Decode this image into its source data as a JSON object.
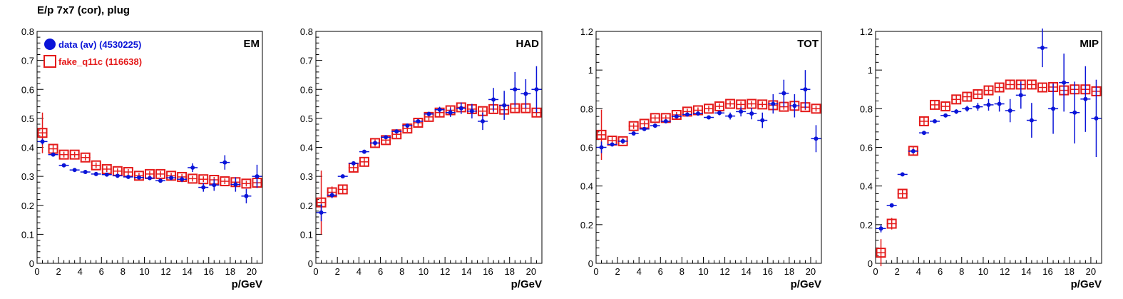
{
  "title": "E/p 7x7 (cor), plug",
  "colors": {
    "data": "#0a14d8",
    "mc": "#e41a1a",
    "axis": "#000000"
  },
  "legend": [
    {
      "label": "data (av) (4530225)",
      "marker": "filled-circle",
      "color": "#0a14d8"
    },
    {
      "label": "fake_q11c (116638)",
      "marker": "open-square",
      "color": "#e41a1a"
    }
  ],
  "chart_data": [
    {
      "type": "scatter",
      "panel_label": "EM",
      "xlabel": "p/GeV",
      "xlim": [
        0,
        21
      ],
      "ylim": [
        0,
        0.8
      ],
      "xticks": [
        0,
        2,
        4,
        6,
        8,
        10,
        12,
        14,
        16,
        18,
        20
      ],
      "yticks": [
        0,
        0.1,
        0.2,
        0.3,
        0.4,
        0.5,
        0.6,
        0.7,
        0.8
      ],
      "x": [
        0.5,
        1.5,
        2.5,
        3.5,
        4.5,
        5.5,
        6.5,
        7.5,
        8.5,
        9.5,
        10.5,
        11.5,
        12.5,
        13.5,
        14.5,
        15.5,
        16.5,
        17.5,
        18.5,
        19.5,
        20.5
      ],
      "series": [
        {
          "name": "data (av) (4530225)",
          "values": [
            0.42,
            0.375,
            0.338,
            0.322,
            0.315,
            0.308,
            0.306,
            0.302,
            0.298,
            0.296,
            0.294,
            0.285,
            0.295,
            0.29,
            0.33,
            0.262,
            0.27,
            0.348,
            0.272,
            0.232,
            0.3
          ],
          "errors": [
            0.01,
            0.005,
            0.004,
            0.004,
            0.004,
            0.004,
            0.004,
            0.004,
            0.004,
            0.005,
            0.005,
            0.006,
            0.008,
            0.01,
            0.015,
            0.015,
            0.02,
            0.025,
            0.025,
            0.025,
            0.04
          ]
        },
        {
          "name": "fake_q11c (116638)",
          "values": [
            0.45,
            0.395,
            0.375,
            0.375,
            0.365,
            0.338,
            0.325,
            0.318,
            0.315,
            0.302,
            0.308,
            0.308,
            0.302,
            0.298,
            0.292,
            0.29,
            0.288,
            0.283,
            0.28,
            0.275,
            0.278
          ],
          "errors": [
            0.07,
            0.015,
            0.01,
            0.01,
            0.01,
            0.01,
            0.01,
            0.01,
            0.01,
            0.01,
            0.01,
            0.01,
            0.01,
            0.01,
            0.01,
            0.01,
            0.01,
            0.01,
            0.01,
            0.01,
            0.01
          ]
        }
      ]
    },
    {
      "type": "scatter",
      "panel_label": "HAD",
      "xlabel": "p/GeV",
      "xlim": [
        0,
        21
      ],
      "ylim": [
        0,
        0.8
      ],
      "xticks": [
        0,
        2,
        4,
        6,
        8,
        10,
        12,
        14,
        16,
        18,
        20
      ],
      "yticks": [
        0,
        0.1,
        0.2,
        0.3,
        0.4,
        0.5,
        0.6,
        0.7,
        0.8
      ],
      "x": [
        0.5,
        1.5,
        2.5,
        3.5,
        4.5,
        5.5,
        6.5,
        7.5,
        8.5,
        9.5,
        10.5,
        11.5,
        12.5,
        13.5,
        14.5,
        15.5,
        16.5,
        17.5,
        18.5,
        19.5,
        20.5
      ],
      "series": [
        {
          "name": "data (av) (4530225)",
          "values": [
            0.175,
            0.235,
            0.3,
            0.345,
            0.385,
            0.415,
            0.435,
            0.455,
            0.475,
            0.49,
            0.515,
            0.53,
            0.52,
            0.535,
            0.525,
            0.49,
            0.565,
            0.545,
            0.6,
            0.585,
            0.6
          ],
          "errors": [
            0.03,
            0.01,
            0.005,
            0.005,
            0.005,
            0.005,
            0.005,
            0.005,
            0.006,
            0.006,
            0.008,
            0.01,
            0.015,
            0.02,
            0.025,
            0.03,
            0.04,
            0.05,
            0.06,
            0.05,
            0.08
          ]
        },
        {
          "name": "fake_q11c (116638)",
          "values": [
            0.21,
            0.245,
            0.255,
            0.33,
            0.35,
            0.415,
            0.425,
            0.445,
            0.465,
            0.485,
            0.505,
            0.52,
            0.528,
            0.538,
            0.532,
            0.525,
            0.532,
            0.53,
            0.535,
            0.535,
            0.52
          ],
          "errors": [
            0.11,
            0.02,
            0.015,
            0.015,
            0.015,
            0.012,
            0.012,
            0.012,
            0.012,
            0.012,
            0.012,
            0.012,
            0.012,
            0.012,
            0.012,
            0.012,
            0.012,
            0.012,
            0.012,
            0.012,
            0.012
          ]
        }
      ]
    },
    {
      "type": "scatter",
      "panel_label": "TOT",
      "xlabel": "p/GeV",
      "xlim": [
        0,
        21
      ],
      "ylim": [
        0,
        1.2
      ],
      "xticks": [
        0,
        2,
        4,
        6,
        8,
        10,
        12,
        14,
        16,
        18,
        20
      ],
      "yticks": [
        0,
        0.2,
        0.4,
        0.6,
        0.8,
        1,
        1.2
      ],
      "x": [
        0.5,
        1.5,
        2.5,
        3.5,
        4.5,
        5.5,
        6.5,
        7.5,
        8.5,
        9.5,
        10.5,
        11.5,
        12.5,
        13.5,
        14.5,
        15.5,
        16.5,
        17.5,
        18.5,
        19.5,
        20.5
      ],
      "series": [
        {
          "name": "data (av) (4530225)",
          "values": [
            0.6,
            0.615,
            0.632,
            0.672,
            0.695,
            0.712,
            0.735,
            0.76,
            0.77,
            0.775,
            0.755,
            0.778,
            0.762,
            0.785,
            0.775,
            0.74,
            0.825,
            0.88,
            0.815,
            0.9,
            0.645
          ],
          "errors": [
            0.03,
            0.01,
            0.006,
            0.006,
            0.006,
            0.006,
            0.006,
            0.006,
            0.008,
            0.008,
            0.01,
            0.012,
            0.018,
            0.025,
            0.03,
            0.04,
            0.05,
            0.07,
            0.06,
            0.1,
            0.07
          ]
        },
        {
          "name": "fake_q11c (116638)",
          "values": [
            0.665,
            0.635,
            0.632,
            0.71,
            0.722,
            0.752,
            0.752,
            0.768,
            0.785,
            0.792,
            0.8,
            0.812,
            0.825,
            0.822,
            0.825,
            0.822,
            0.818,
            0.81,
            0.815,
            0.808,
            0.8
          ],
          "errors": [
            0.13,
            0.02,
            0.015,
            0.015,
            0.015,
            0.015,
            0.015,
            0.015,
            0.015,
            0.015,
            0.015,
            0.015,
            0.015,
            0.015,
            0.015,
            0.015,
            0.015,
            0.015,
            0.015,
            0.015,
            0.015
          ]
        }
      ]
    },
    {
      "type": "scatter",
      "panel_label": "MIP",
      "xlabel": "p/GeV",
      "xlim": [
        0,
        21
      ],
      "ylim": [
        0,
        1.2
      ],
      "xticks": [
        0,
        2,
        4,
        6,
        8,
        10,
        12,
        14,
        16,
        18,
        20
      ],
      "yticks": [
        0,
        0.2,
        0.4,
        0.6,
        0.8,
        1,
        1.2
      ],
      "x": [
        0.5,
        1.5,
        2.5,
        3.5,
        4.5,
        5.5,
        6.5,
        7.5,
        8.5,
        9.5,
        10.5,
        11.5,
        12.5,
        13.5,
        14.5,
        15.5,
        16.5,
        17.5,
        18.5,
        19.5,
        20.5
      ],
      "series": [
        {
          "name": "data (av) (4530225)",
          "values": [
            0.18,
            0.3,
            0.46,
            0.58,
            0.675,
            0.735,
            0.765,
            0.785,
            0.8,
            0.81,
            0.82,
            0.825,
            0.79,
            0.87,
            0.74,
            1.115,
            0.8,
            0.935,
            0.78,
            0.85,
            0.75
          ],
          "errors": [
            0.02,
            0.008,
            0.006,
            0.006,
            0.006,
            0.008,
            0.01,
            0.012,
            0.015,
            0.02,
            0.03,
            0.04,
            0.06,
            0.07,
            0.09,
            0.1,
            0.13,
            0.15,
            0.16,
            0.17,
            0.2
          ]
        },
        {
          "name": "fake_q11c (116638)",
          "values": [
            0.055,
            0.205,
            0.36,
            0.582,
            0.735,
            0.82,
            0.812,
            0.848,
            0.862,
            0.875,
            0.895,
            0.91,
            0.925,
            0.925,
            0.925,
            0.91,
            0.912,
            0.895,
            0.9,
            0.9,
            0.89
          ],
          "errors": [
            0.07,
            0.03,
            0.02,
            0.02,
            0.02,
            0.02,
            0.02,
            0.02,
            0.02,
            0.02,
            0.02,
            0.02,
            0.02,
            0.02,
            0.02,
            0.02,
            0.02,
            0.02,
            0.02,
            0.02,
            0.02
          ]
        }
      ]
    }
  ]
}
